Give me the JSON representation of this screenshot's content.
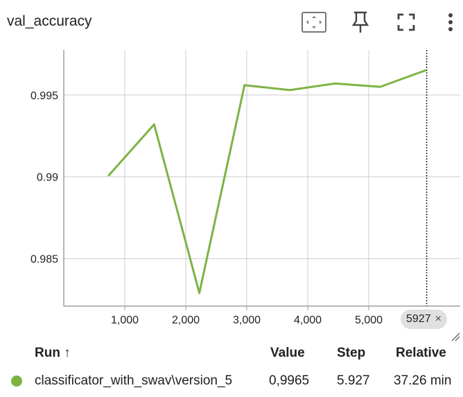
{
  "card": {
    "title": "val_accuracy"
  },
  "toolbar": {
    "icons": [
      "fit-domain-icon",
      "pin-icon",
      "fullscreen-icon",
      "more-vert-icon"
    ]
  },
  "colors": {
    "series": "#7cb342",
    "grid": "#cccccc",
    "axis": "#9e9e9e",
    "chip": "#e0e0e0"
  },
  "step_chip": {
    "label": "5927",
    "close": "×"
  },
  "table": {
    "headers": {
      "run": "Run ↑",
      "value": "Value",
      "step": "Step",
      "relative": "Relative"
    },
    "rows": [
      {
        "run": "classificator_with_swav\\version_5",
        "value": "0,9965",
        "step": "5.927",
        "relative": "37.26 min"
      }
    ]
  },
  "chart_data": {
    "type": "line",
    "x_ticks": [
      1000,
      2000,
      3000,
      4000,
      5000
    ],
    "x_tick_labels": [
      "1,000",
      "2,000",
      "3,000",
      "4,000",
      "5,000"
    ],
    "y_ticks": [
      0.985,
      0.99,
      0.995
    ],
    "y_tick_labels": [
      "0.985",
      "0.99",
      "0.995"
    ],
    "xlim": [
      0,
      6500
    ],
    "ylim": [
      0.9821,
      0.99775
    ],
    "grid": true,
    "cursor_step": 5927,
    "series": [
      {
        "x": [
          741,
          1482,
          2223,
          2964,
          3705,
          4446,
          5187,
          5927
        ],
        "y": [
          0.9901,
          0.9932,
          0.9829,
          0.9956,
          0.9953,
          0.9957,
          0.9955,
          0.9965
        ]
      }
    ]
  }
}
